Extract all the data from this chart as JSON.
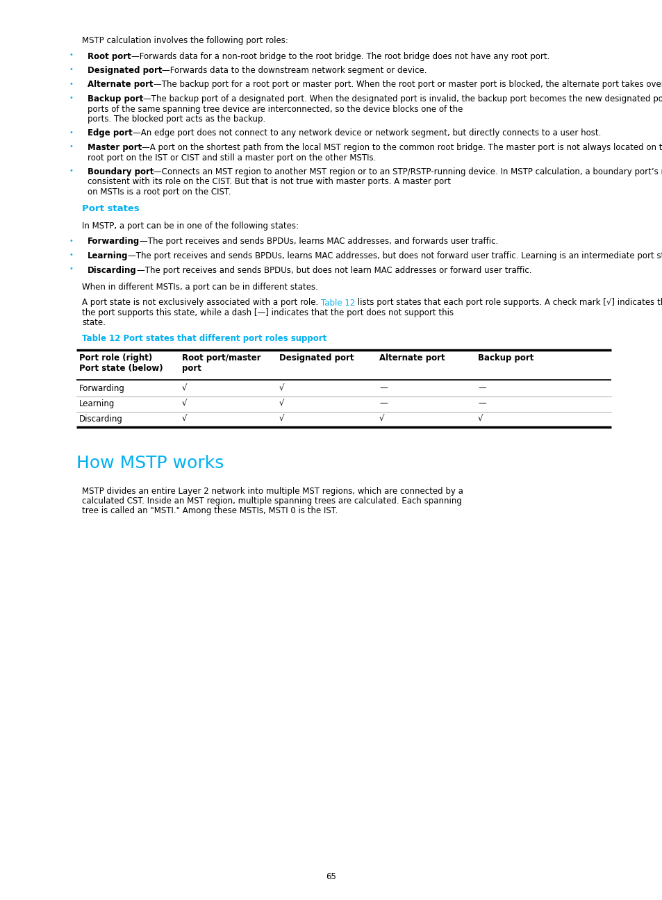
{
  "page_bg": "#ffffff",
  "text_color": "#000000",
  "cyan_color": "#00b0f0",
  "bullet_color": "#00b0f0",
  "page_number": "65",
  "intro_text": "MSTP calculation involves the following port roles:",
  "bullets": [
    {
      "bold": "Root port",
      "text": "—Forwards data for a non-root bridge to the root bridge. The root bridge does not have any root port."
    },
    {
      "bold": "Designated port",
      "text": "—Forwards data to the downstream network segment or device."
    },
    {
      "bold": "Alternate port",
      "text": "—The backup port for a root port or master port. When the root port or master port is blocked, the alternate port takes over."
    },
    {
      "bold": "Backup port",
      "text": "—The backup port of a designated port. When the designated port is invalid, the backup port becomes the new designated port. A loop occurs when two ports of the same spanning tree device are interconnected, so the device blocks one of the ports. The blocked port acts as the backup."
    },
    {
      "bold": "Edge port",
      "text": "—An edge port does not connect to any network device or network segment, but directly connects to a user host."
    },
    {
      "bold": "Master port",
      "text": "—A port on the shortest path from the local MST region to the common root bridge. The master port is not always located on the regional root. It is a root port on the IST or CIST and still a master port on the other MSTIs."
    },
    {
      "bold": "Boundary port",
      "text": "—Connects an MST region to another MST region or to an STP/RSTP-running device. In MSTP calculation, a boundary port’s role on an MSTI is consistent with its role on the CIST. But that is not true with master ports. A master port on MSTIs is a root port on the CIST."
    }
  ],
  "port_states_heading": "Port states",
  "port_states_intro": "In MSTP, a port can be in one of the following states:",
  "port_states_bullets": [
    {
      "bold": "Forwarding",
      "text": "—The port receives and sends BPDUs, learns MAC addresses, and forwards user traffic."
    },
    {
      "bold": "Learning",
      "text": "—The port receives and sends BPDUs, learns MAC addresses, but does not forward user traffic. Learning is an intermediate port state."
    },
    {
      "bold": "Discarding",
      "text": "—The port receives and sends BPDUs, but does not learn MAC addresses or forward user traffic."
    }
  ],
  "para1": "When in different MSTIs, a port can be in different states.",
  "para2_part1": "A port state is not exclusively associated with a port role. ",
  "para2_link": "Table 12",
  "para2_part2": " lists port states that each port role supports. A check mark [√] indicates that the port supports this state, while a dash [—] indicates that the port does not support this state.",
  "table_title": "Table 12 Port states that different port roles support",
  "table_headers": [
    "Port role (right)\nPort state (below)",
    "Root port/master\nport",
    "Designated port",
    "Alternate port",
    "Backup port"
  ],
  "table_rows": [
    [
      "Forwarding",
      "√",
      "√",
      "—",
      "—"
    ],
    [
      "Learning",
      "√",
      "√",
      "—",
      "—"
    ],
    [
      "Discarding",
      "√",
      "√",
      "√",
      "√"
    ]
  ],
  "section_heading": "How MSTP works",
  "section_para": "MSTP divides an entire Layer 2 network into multiple MST regions, which are connected by a calculated CST. Inside an MST region, multiple spanning trees are calculated. Each spanning tree is called an \"MSTI.\" Among these MSTIs, MSTI 0 is the IST."
}
